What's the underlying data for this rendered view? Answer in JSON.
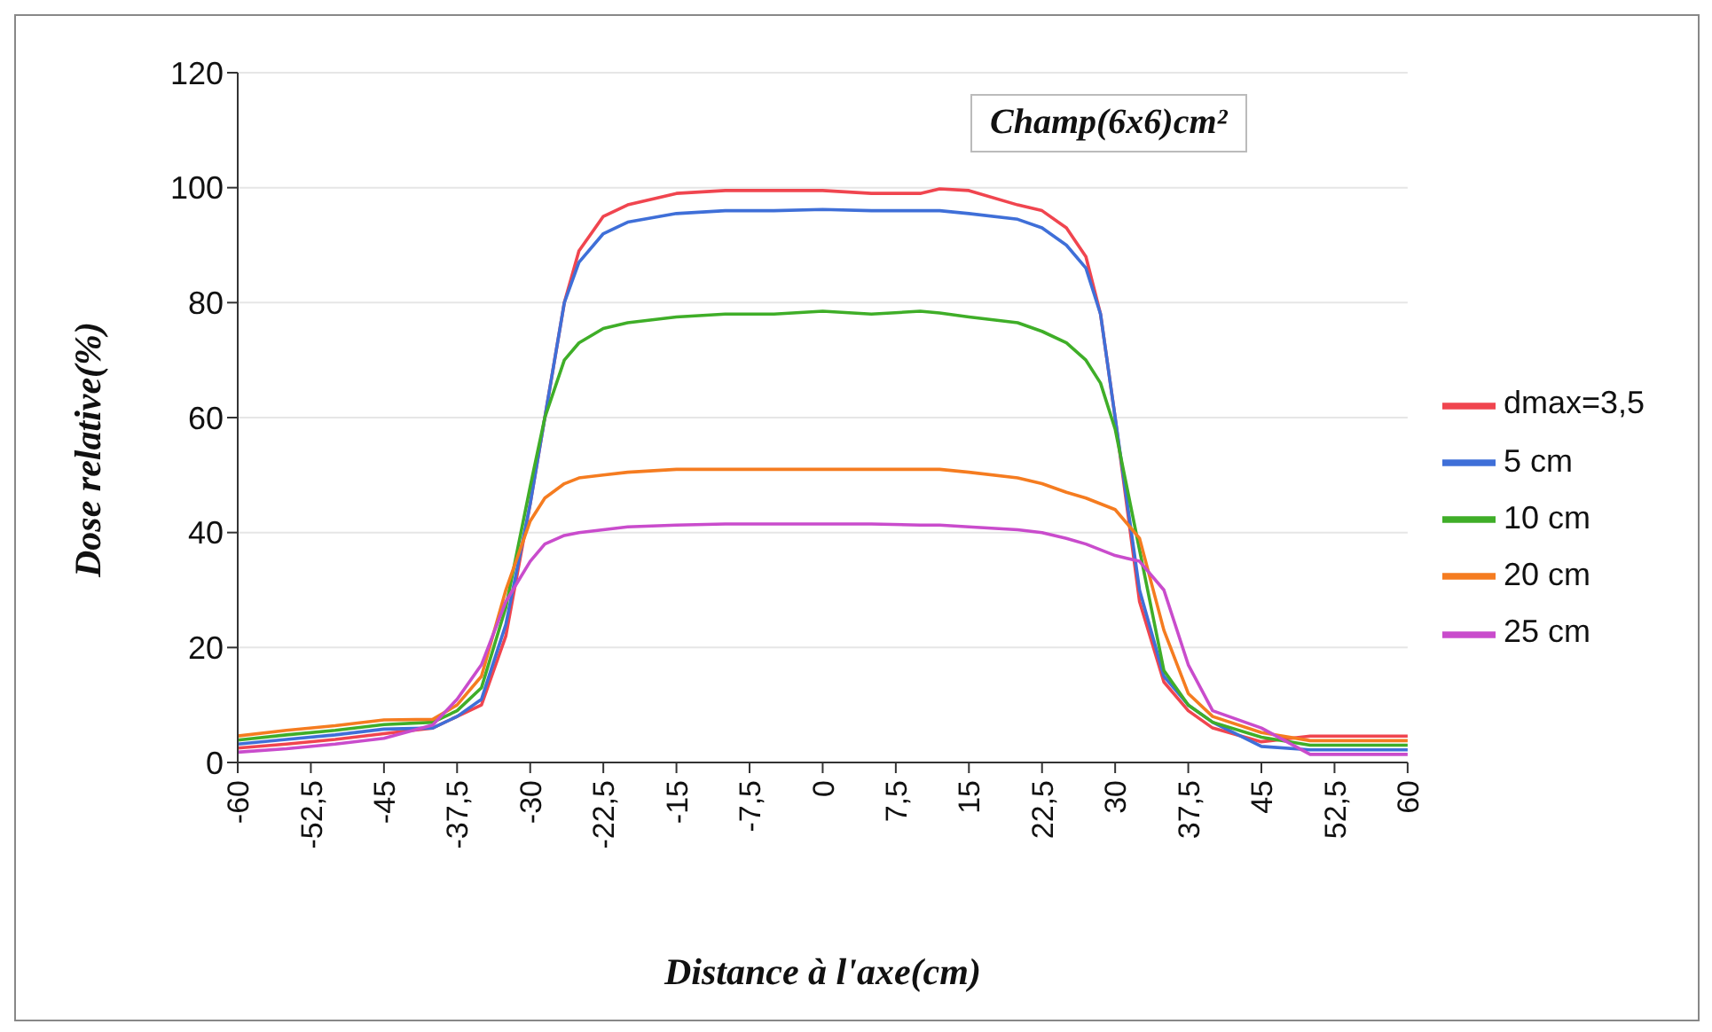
{
  "chart_data": {
    "type": "line",
    "title": "Champ(6x6)cm²",
    "xlabel": "Distance à l'axe(cm)",
    "ylabel": "Dose relative(%)",
    "x": [
      -60,
      -55,
      -50,
      -45,
      -40,
      -37.5,
      -35,
      -32.5,
      -30,
      -28.5,
      -26.5,
      -25,
      -22.5,
      -20,
      -15,
      -10,
      -5,
      0,
      5,
      10,
      12,
      15,
      20,
      22.5,
      25,
      27,
      28.5,
      30,
      32.5,
      35,
      37.5,
      40,
      45,
      50,
      55,
      60
    ],
    "series": [
      {
        "name": "dmax=3,5",
        "color": "#f0454f",
        "values": [
          2.5,
          3.2,
          4,
          5,
          6,
          8,
          10,
          22,
          45,
          60,
          80,
          89,
          95,
          97,
          99,
          99.5,
          99.5,
          99.5,
          99,
          99,
          99.8,
          99.5,
          97,
          96,
          93,
          88,
          78,
          60,
          28,
          14,
          9,
          6,
          3.6,
          4.6,
          4.6,
          4.6
        ]
      },
      {
        "name": "5 cm",
        "color": "#3f6fd8",
        "values": [
          3.2,
          4,
          4.8,
          5.8,
          6,
          8,
          11,
          24,
          45,
          60,
          80,
          87,
          92,
          94,
          95.5,
          96,
          96,
          96.2,
          96,
          96,
          96,
          95.5,
          94.5,
          93,
          90,
          86,
          78,
          60,
          30,
          15,
          10,
          7,
          2.8,
          2.2,
          2.2,
          2.2
        ]
      },
      {
        "name": "10 cm",
        "color": "#3fae28",
        "values": [
          3.9,
          4.8,
          5.6,
          6.6,
          7,
          9,
          13,
          27,
          48,
          60,
          70,
          73,
          75.5,
          76.5,
          77.5,
          78,
          78,
          78.5,
          78,
          78.5,
          78.2,
          77.5,
          76.5,
          75,
          73,
          70,
          66,
          58,
          37,
          16,
          10,
          7,
          4.4,
          3,
          3,
          3
        ]
      },
      {
        "name": "20 cm",
        "color": "#f57c20",
        "values": [
          4.6,
          5.6,
          6.4,
          7.4,
          7.5,
          10,
          15,
          30,
          42,
          46,
          48.5,
          49.5,
          50,
          50.5,
          51,
          51,
          51,
          51,
          51,
          51,
          51,
          50.5,
          49.5,
          48.5,
          47,
          46,
          45,
          44,
          39,
          23,
          12,
          8,
          5.2,
          3.8,
          3.8,
          3.8
        ]
      },
      {
        "name": "25 cm",
        "color": "#c94ccc",
        "values": [
          1.8,
          2.4,
          3.2,
          4.2,
          6.5,
          11,
          17,
          28,
          35,
          38,
          39.5,
          40,
          40.5,
          41,
          41.3,
          41.5,
          41.5,
          41.5,
          41.5,
          41.3,
          41.3,
          41,
          40.5,
          40,
          39,
          38,
          37,
          36,
          35,
          30,
          17,
          9,
          6,
          1.4,
          1.4,
          1.4
        ]
      }
    ],
    "xlim": [
      -60,
      60
    ],
    "xticks": [
      -60,
      {
        "value": -52.5,
        "label": "-52,5"
      },
      -45,
      {
        "value": -37.5,
        "label": "-37,5"
      },
      -30,
      {
        "value": -22.5,
        "label": "-22,5"
      },
      -15,
      {
        "value": -7.5,
        "label": "-7,5"
      },
      0,
      {
        "value": 7.5,
        "label": "7,5"
      },
      15,
      {
        "value": 22.5,
        "label": "22,5"
      },
      30,
      {
        "value": 37.5,
        "label": "37,5"
      },
      45,
      {
        "value": 52.5,
        "label": "52,5"
      },
      60
    ],
    "ylim": [
      0,
      120
    ],
    "yticks": [
      0,
      20,
      40,
      60,
      80,
      100,
      120
    ],
    "grid": "y",
    "legend": "right",
    "marker": "none",
    "line_style": "solid"
  }
}
